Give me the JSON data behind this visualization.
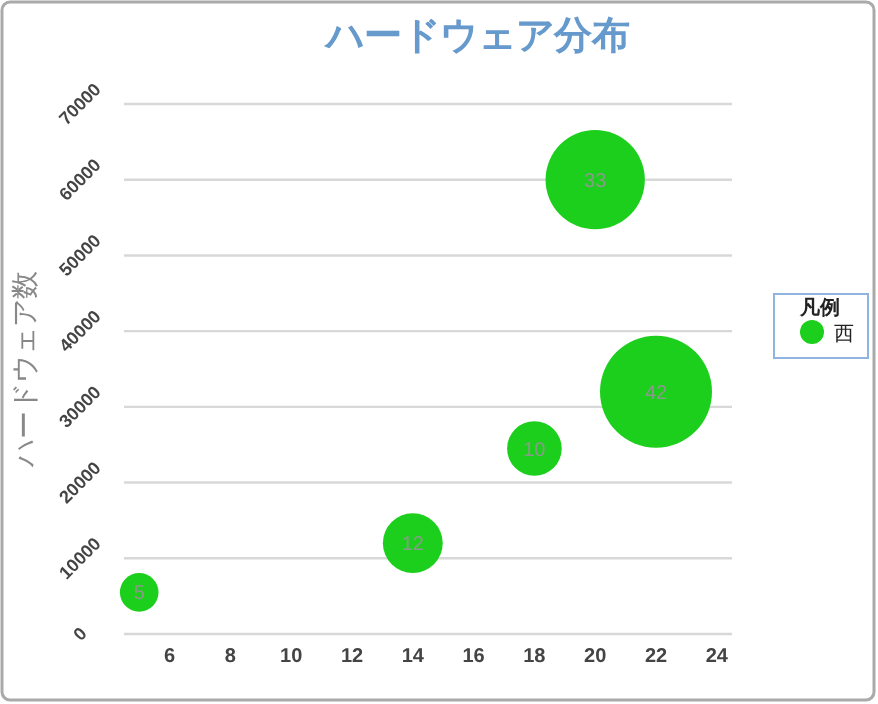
{
  "chart_data": {
    "type": "bubble",
    "title": "ハードウェア分布",
    "ylabel": "ハードウェア数",
    "legend_title": "凡例",
    "x": [
      5,
      14,
      18,
      20,
      22
    ],
    "series": [
      {
        "name": "西",
        "color": "#1ccf1c",
        "values": [
          5500,
          12000,
          24500,
          60000,
          32000
        ],
        "sizes": [
          5,
          12,
          10,
          33,
          42
        ],
        "value_labels": [
          "5",
          "12",
          "10",
          "33",
          "42"
        ]
      }
    ],
    "xlim": [
      4.5,
      24.5
    ],
    "xticks": [
      6,
      8,
      10,
      12,
      14,
      16,
      18,
      20,
      22,
      24
    ],
    "ylim": [
      0,
      70000
    ],
    "yticks": [
      0,
      10000,
      20000,
      30000,
      40000,
      50000,
      60000,
      70000
    ],
    "grid": "y",
    "legend": "right"
  }
}
